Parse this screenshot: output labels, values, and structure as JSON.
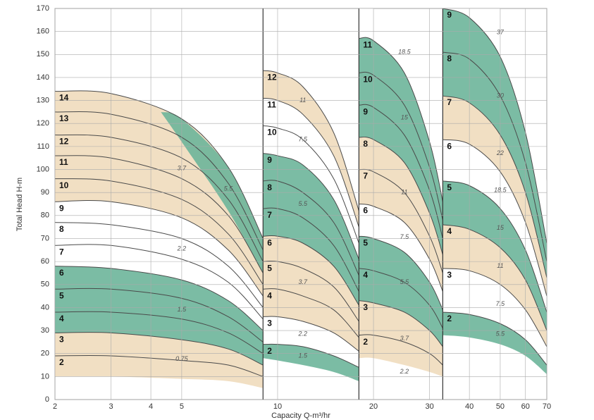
{
  "chart_data": {
    "type": "line",
    "y_label": "Total Head H-m",
    "x_label": "Capacity Q-m³/hr",
    "log_x": true,
    "grid": true,
    "line_color": "#4a4a4a",
    "xlim": [
      2,
      70
    ],
    "ylim": [
      0,
      170
    ],
    "xticks": [
      2,
      3,
      4,
      5,
      10,
      20,
      30,
      40,
      50,
      60,
      70
    ],
    "yticks": [
      0,
      10,
      20,
      30,
      40,
      50,
      60,
      70,
      80,
      90,
      100,
      110,
      120,
      130,
      140,
      150,
      160,
      170
    ],
    "panels": [
      {
        "x": [
          2,
          3,
          5,
          7,
          9
        ],
        "series": [
          {
            "name": "2",
            "values": [
              19,
              19,
              17,
              15,
              10
            ]
          },
          {
            "name": "3",
            "values": [
              29,
              29,
              26,
              22,
              15
            ]
          },
          {
            "name": "4",
            "values": [
              38,
              38,
              35,
              29,
              20
            ]
          },
          {
            "name": "5",
            "values": [
              48,
              48,
              44,
              36,
              25
            ]
          },
          {
            "name": "6",
            "values": [
              58,
              57,
              52,
              43,
              30
            ]
          },
          {
            "name": "7",
            "values": [
              67,
              67,
              61,
              51,
              35
            ]
          },
          {
            "name": "8",
            "values": [
              77,
              76,
              70,
              58,
              40
            ]
          },
          {
            "name": "9",
            "values": [
              86,
              86,
              79,
              65,
              45
            ]
          },
          {
            "name": "10",
            "values": [
              96,
              95,
              87,
              72,
              50
            ]
          },
          {
            "name": "11",
            "values": [
              106,
              105,
              96,
              80,
              55
            ]
          },
          {
            "name": "12",
            "values": [
              115,
              114,
              105,
              87,
              60
            ]
          },
          {
            "name": "13",
            "values": [
              125,
              124,
              114,
              94,
              65
            ]
          },
          {
            "name": "14",
            "values": [
              134,
              133,
              122,
              101,
              70
            ]
          }
        ],
        "bands": [
          {
            "name": "0.75",
            "color": "#efdcbc",
            "lower": [
              10,
              10,
              9,
              8,
              5
            ],
            "upper": [
              29,
              29,
              26,
              22,
              15
            ]
          },
          {
            "name": "1.5",
            "color": "#6db59a",
            "lower": [
              29,
              29,
              26,
              22,
              15
            ],
            "upper": [
              58,
              57,
              52,
              43,
              30
            ]
          },
          {
            "name": "2.2",
            "color": "#ffffff",
            "lower": [
              58,
              57,
              52,
              43,
              30
            ],
            "upper": [
              86,
              86,
              79,
              65,
              45
            ]
          },
          {
            "name": "3.7",
            "color": "#efdcbc",
            "lower": [
              86,
              86,
              79,
              65,
              45
            ],
            "upper": [
              134,
              133,
              122,
              101,
              70
            ]
          },
          {
            "name": "5.5",
            "color": "#6db59a",
            "x": [
              4.3,
              5,
              7,
              9
            ],
            "lower": [
              125,
              112,
              82,
              55
            ],
            "upper": [
              125,
              122,
              101,
              70
            ]
          }
        ]
      },
      {
        "x": [
          9,
          10,
          12,
          15,
          18
        ],
        "series": [
          {
            "name": "2",
            "values": [
              24,
              24,
              23,
              19,
              14
            ]
          },
          {
            "name": "3",
            "values": [
              36,
              36,
              34,
              29,
              21
            ]
          },
          {
            "name": "4",
            "values": [
              48,
              48,
              45,
              39,
              27
            ]
          },
          {
            "name": "5",
            "values": [
              60,
              60,
              57,
              49,
              34
            ]
          },
          {
            "name": "6",
            "values": [
              71,
              71,
              68,
              58,
              41
            ]
          },
          {
            "name": "7",
            "values": [
              83,
              83,
              79,
              67,
              47
            ]
          },
          {
            "name": "8",
            "values": [
              95,
              95,
              90,
              77,
              54
            ]
          },
          {
            "name": "9",
            "values": [
              107,
              106,
              102,
              87,
              61
            ]
          },
          {
            "name": "10",
            "values": [
              119,
              118,
              113,
              96,
              68
            ]
          },
          {
            "name": "11",
            "values": [
              131,
              130,
              124,
              106,
              75
            ]
          },
          {
            "name": "12",
            "values": [
              143,
              142,
              136,
              116,
              82
            ]
          }
        ],
        "bands": [
          {
            "name": "1.5",
            "color": "#6db59a",
            "lower": [
              18,
              17,
              15,
              12,
              8
            ],
            "upper": [
              24,
              24,
              23,
              19,
              14
            ]
          },
          {
            "name": "2.2",
            "color": "#ffffff",
            "lower": [
              24,
              24,
              23,
              19,
              14
            ],
            "upper": [
              36,
              36,
              34,
              29,
              21
            ]
          },
          {
            "name": "3.7",
            "color": "#efdcbc",
            "lower": [
              36,
              36,
              34,
              29,
              21
            ],
            "upper": [
              71,
              71,
              68,
              58,
              41
            ]
          },
          {
            "name": "5.5",
            "color": "#6db59a",
            "lower": [
              71,
              71,
              68,
              58,
              41
            ],
            "upper": [
              107,
              106,
              102,
              87,
              61
            ]
          },
          {
            "name": "7.5",
            "color": "#ffffff",
            "lower": [
              107,
              106,
              102,
              87,
              61
            ],
            "upper": [
              131,
              130,
              124,
              106,
              75
            ]
          },
          {
            "name": "11",
            "color": "#efdcbc",
            "lower": [
              131,
              130,
              124,
              106,
              75
            ],
            "upper": [
              143,
              142,
              136,
              116,
              82
            ]
          }
        ]
      },
      {
        "x": [
          18,
          20,
          25,
          30,
          33
        ],
        "series": [
          {
            "name": "2",
            "values": [
              28,
              28,
              25,
              20,
              15
            ]
          },
          {
            "name": "3",
            "values": [
              43,
              42,
              38,
              30,
              23
            ]
          },
          {
            "name": "4",
            "values": [
              57,
              56,
              51,
              41,
              31
            ]
          },
          {
            "name": "5",
            "values": [
              71,
              70,
              64,
              51,
              39
            ]
          },
          {
            "name": "6",
            "values": [
              85,
              84,
              77,
              61,
              47
            ]
          },
          {
            "name": "7",
            "values": [
              100,
              99,
              90,
              71,
              55
            ]
          },
          {
            "name": "8",
            "values": [
              114,
              113,
              103,
              81,
              63
            ]
          },
          {
            "name": "9",
            "values": [
              128,
              127,
              115,
              91,
              70
            ]
          },
          {
            "name": "10",
            "values": [
              142,
              141,
              128,
              101,
              78
            ]
          },
          {
            "name": "11",
            "values": [
              157,
              156,
              142,
              112,
              86
            ]
          }
        ],
        "bands": [
          {
            "name": "2.2",
            "color": "#ffffff",
            "lower": [
              10,
              10,
              9,
              8,
              6
            ],
            "upper": [
              18,
              18,
              15,
              12,
              10
            ]
          },
          {
            "name": "3.7",
            "color": "#efdcbc",
            "lower": [
              18,
              18,
              15,
              12,
              10
            ],
            "upper": [
              43,
              42,
              38,
              30,
              23
            ]
          },
          {
            "name": "5.5",
            "color": "#6db59a",
            "lower": [
              43,
              42,
              38,
              30,
              23
            ],
            "upper": [
              71,
              70,
              64,
              51,
              39
            ]
          },
          {
            "name": "7.5",
            "color": "#ffffff",
            "lower": [
              71,
              70,
              64,
              51,
              39
            ],
            "upper": [
              85,
              84,
              77,
              61,
              47
            ]
          },
          {
            "name": "11",
            "color": "#efdcbc",
            "lower": [
              85,
              84,
              77,
              61,
              47
            ],
            "upper": [
              114,
              113,
              103,
              81,
              63
            ]
          },
          {
            "name": "15",
            "color": "#6db59a",
            "lower": [
              114,
              113,
              103,
              81,
              63
            ],
            "upper": [
              157,
              156,
              142,
              112,
              86
            ]
          },
          {
            "name": "18.5",
            "color": "#ffffff",
            "lower": [
              157,
              156,
              142,
              112,
              86
            ],
            "upper": [
              170,
              170,
              160,
              130,
              100
            ]
          }
        ]
      },
      {
        "x": [
          33,
          40,
          50,
          60,
          70
        ],
        "series": [
          {
            "name": "2",
            "values": [
              38,
              37,
              33,
              26,
              15
            ]
          },
          {
            "name": "3",
            "values": [
              57,
              56,
              50,
              39,
              23
            ]
          },
          {
            "name": "4",
            "values": [
              76,
              74,
              66,
              52,
              30
            ]
          },
          {
            "name": "5",
            "values": [
              95,
              93,
              83,
              65,
              38
            ]
          },
          {
            "name": "6",
            "values": [
              113,
              111,
              99,
              77,
              45
            ]
          },
          {
            "name": "7",
            "values": [
              132,
              129,
              115,
              90,
              53
            ]
          },
          {
            "name": "8",
            "values": [
              151,
              148,
              132,
              103,
              60
            ]
          },
          {
            "name": "9",
            "values": [
              170,
              166,
              149,
              116,
              68
            ]
          }
        ],
        "bands": [
          {
            "name": "5.5",
            "color": "#6db59a",
            "lower": [
              28,
              27,
              24,
              19,
              11
            ],
            "upper": [
              38,
              37,
              33,
              26,
              15
            ]
          },
          {
            "name": "7.5",
            "color": "#ffffff",
            "lower": [
              38,
              37,
              33,
              26,
              15
            ],
            "upper": [
              57,
              56,
              50,
              39,
              23
            ]
          },
          {
            "name": "11",
            "color": "#efdcbc",
            "lower": [
              57,
              56,
              50,
              39,
              23
            ],
            "upper": [
              76,
              74,
              66,
              52,
              30
            ]
          },
          {
            "name": "15",
            "color": "#6db59a",
            "lower": [
              76,
              74,
              66,
              52,
              30
            ],
            "upper": [
              95,
              93,
              83,
              65,
              38
            ]
          },
          {
            "name": "18.5",
            "color": "#ffffff",
            "lower": [
              95,
              93,
              83,
              65,
              38
            ],
            "upper": [
              113,
              111,
              99,
              77,
              45
            ]
          },
          {
            "name": "22",
            "color": "#efdcbc",
            "lower": [
              113,
              111,
              99,
              77,
              45
            ],
            "upper": [
              132,
              129,
              115,
              90,
              53
            ]
          },
          {
            "name": "30",
            "color": "#6db59a",
            "lower": [
              132,
              129,
              115,
              90,
              53
            ],
            "upper": [
              170,
              166,
              149,
              116,
              68
            ]
          },
          {
            "name": "37",
            "color": "#ffffff",
            "lower": [
              170,
              166,
              149,
              116,
              68
            ],
            "upper": [
              170,
              170,
              170,
              150,
              95
            ]
          }
        ]
      }
    ]
  }
}
